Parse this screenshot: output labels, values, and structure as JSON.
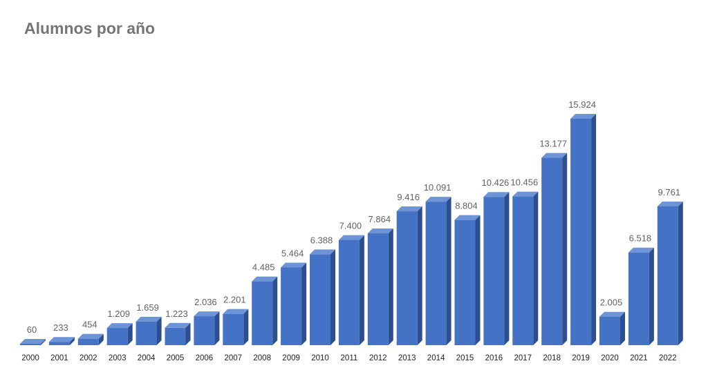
{
  "chart_data": {
    "type": "bar",
    "title": "Alumnos por año",
    "xlabel": "",
    "ylabel": "",
    "categories": [
      "2000",
      "2001",
      "2002",
      "2003",
      "2004",
      "2005",
      "2006",
      "2007",
      "2008",
      "2009",
      "2010",
      "2011",
      "2012",
      "2013",
      "2014",
      "2015",
      "2016",
      "2017",
      "2018",
      "2019",
      "2020",
      "2021",
      "2022"
    ],
    "values": [
      60,
      233,
      454,
      1209,
      1659,
      1223,
      2036,
      2201,
      4485,
      5464,
      6388,
      7400,
      7864,
      9416,
      10091,
      8804,
      10426,
      10456,
      13177,
      15924,
      2005,
      6518,
      9761
    ],
    "value_labels": [
      "60",
      "233",
      "454",
      "1.209",
      "1.659",
      "1.223",
      "2.036",
      "2.201",
      "4.485",
      "5.464",
      "6.388",
      "7.400",
      "7.864",
      "9.416",
      "10.091",
      "8.804",
      "10.426",
      "10.456",
      "13.177",
      "15.924",
      "2.005",
      "6.518",
      "9.761"
    ],
    "ylim": [
      0,
      16000
    ],
    "grid": false,
    "legend": "none",
    "style": "3d-columns",
    "colors": {
      "front": "#4472C4",
      "side": "#2E4F8F",
      "top": "#6D94D6"
    }
  }
}
